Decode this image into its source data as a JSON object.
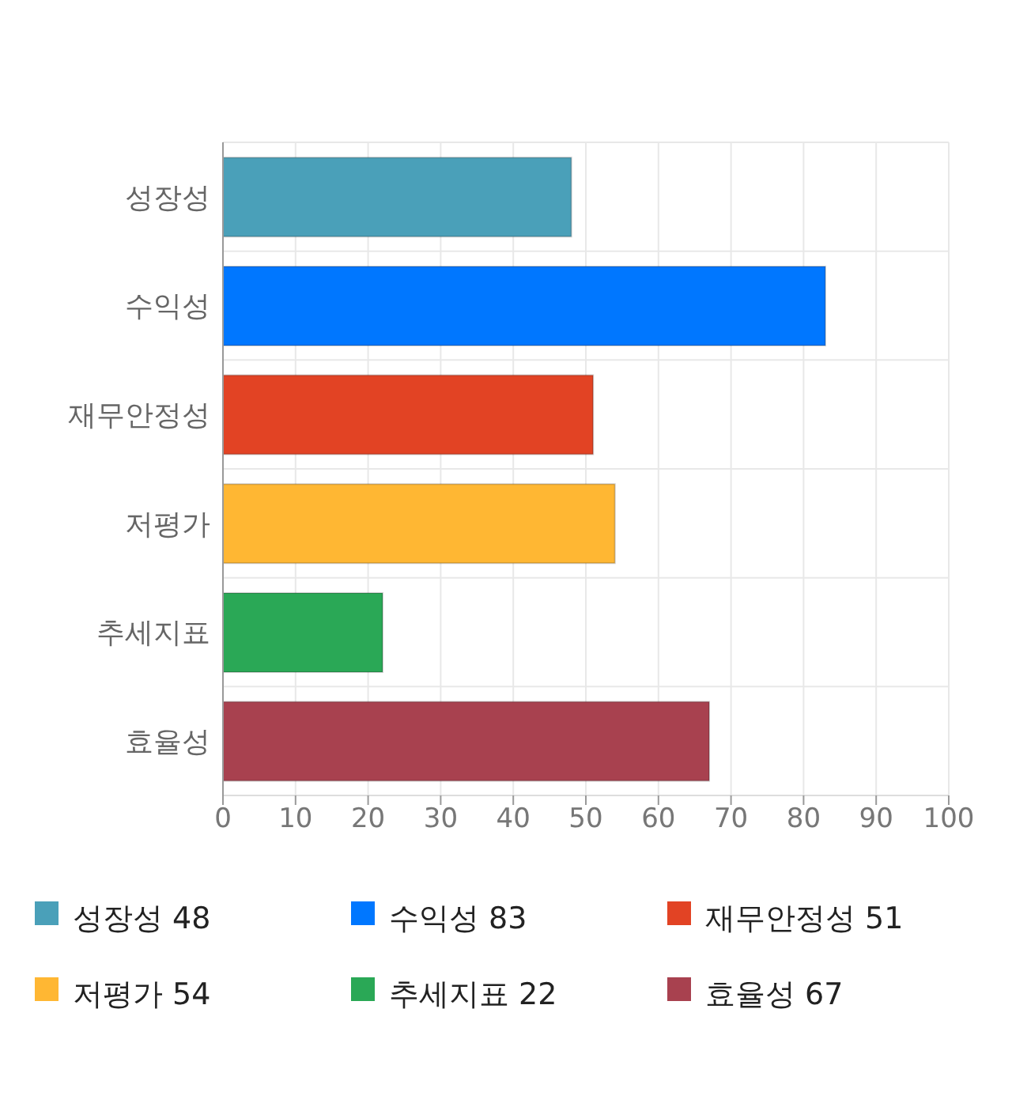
{
  "chart_data": {
    "type": "bar",
    "orientation": "horizontal",
    "categories": [
      "성장성",
      "수익성",
      "재무안정성",
      "저평가",
      "추세지표",
      "효율성"
    ],
    "values": [
      48,
      83,
      51,
      54,
      22,
      67
    ],
    "colors": [
      "#4aa0b9",
      "#0077ff",
      "#e24324",
      "#ffb733",
      "#2aa856",
      "#a8414f"
    ],
    "xlim": [
      0,
      100
    ],
    "xticks": [
      0,
      10,
      20,
      30,
      40,
      50,
      60,
      70,
      80,
      90,
      100
    ],
    "grid": true,
    "annotations": [
      "성장성 48",
      "수익성 83",
      "재무안정성 51",
      "저평가 54",
      "추세지표 22",
      "효율성 67"
    ]
  }
}
